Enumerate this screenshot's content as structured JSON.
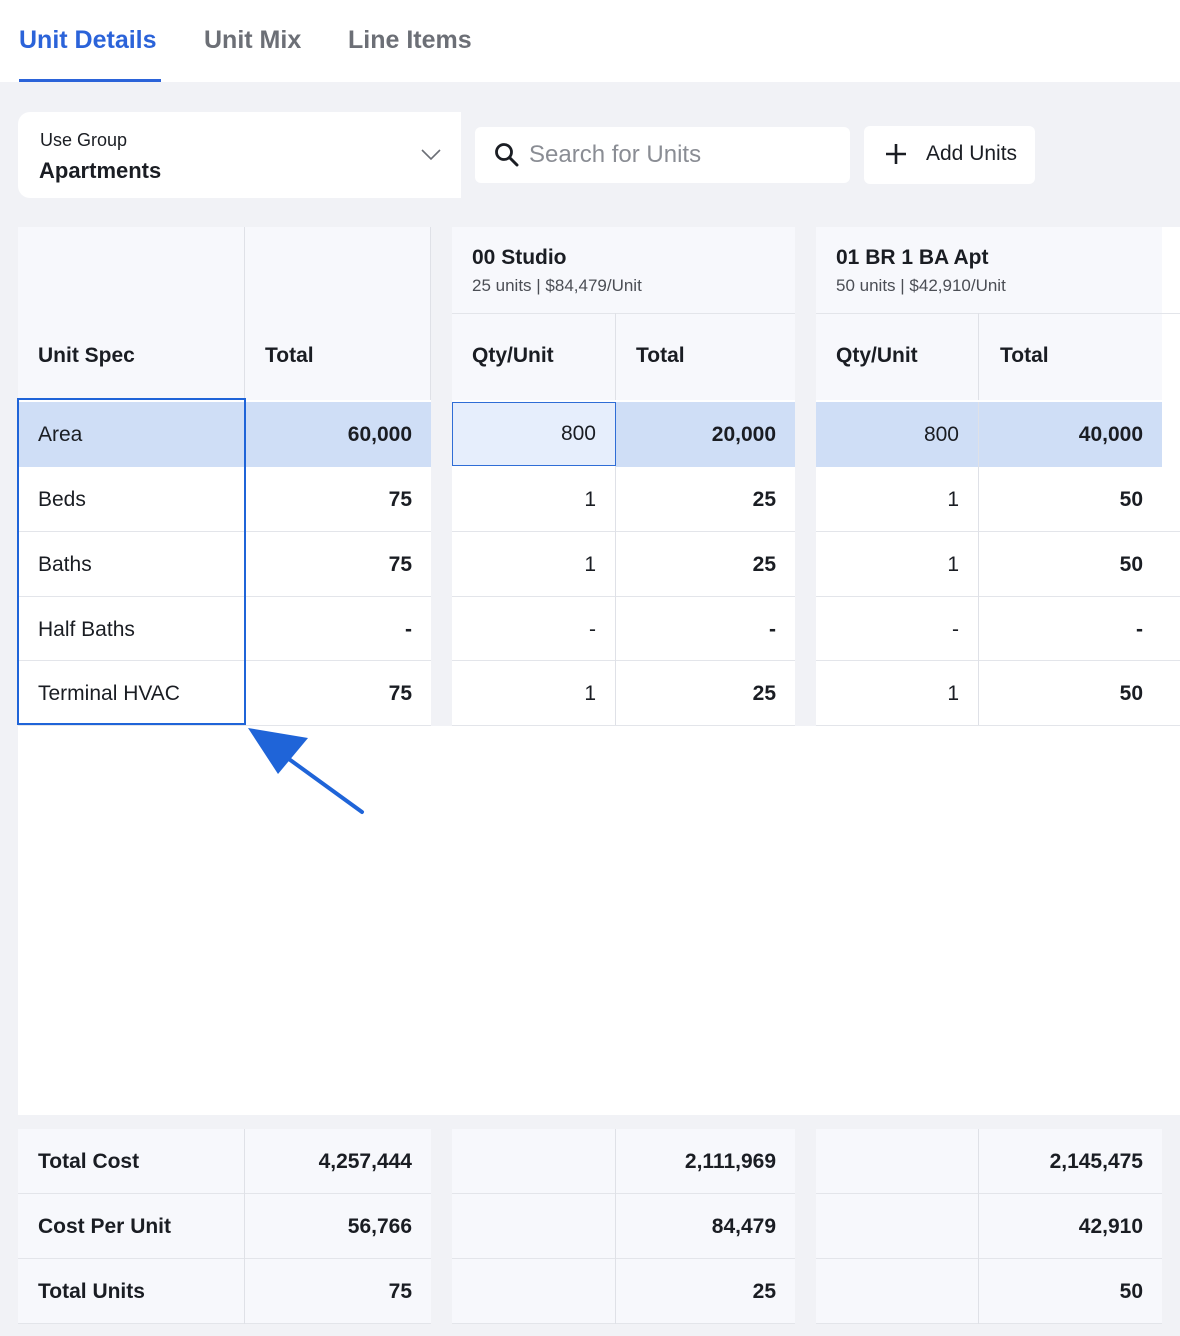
{
  "tabs": [
    {
      "label": "Unit Details",
      "active": true
    },
    {
      "label": "Unit Mix",
      "active": false
    },
    {
      "label": "Line Items",
      "active": false
    }
  ],
  "use_group": {
    "label": "Use Group",
    "value": "Apartments"
  },
  "search": {
    "placeholder": "Search for Units",
    "value": ""
  },
  "add_units": {
    "label": "Add Units"
  },
  "table": {
    "spec_header": "Unit Spec",
    "total_header": "Total",
    "qty_header": "Qty/Unit",
    "units": [
      {
        "name": "00 Studio",
        "summary": "25 units | $84,479/Unit"
      },
      {
        "name": "01 BR 1 BA Apt",
        "summary": "50 units | $42,910/Unit"
      }
    ],
    "rows": [
      {
        "spec": "Area",
        "total": "60,000",
        "u1_qty": "800",
        "u1_total": "20,000",
        "u2_qty": "800",
        "u2_total": "40,000"
      },
      {
        "spec": "Beds",
        "total": "75",
        "u1_qty": "1",
        "u1_total": "25",
        "u2_qty": "1",
        "u2_total": "50"
      },
      {
        "spec": "Baths",
        "total": "75",
        "u1_qty": "1",
        "u1_total": "25",
        "u2_qty": "1",
        "u2_total": "50"
      },
      {
        "spec": "Half Baths",
        "total": "-",
        "u1_qty": "-",
        "u1_total": "-",
        "u2_qty": "-",
        "u2_total": "-"
      },
      {
        "spec": "Terminal HVAC",
        "total": "75",
        "u1_qty": "1",
        "u1_total": "25",
        "u2_qty": "1",
        "u2_total": "50"
      }
    ],
    "footer": [
      {
        "label": "Total Cost",
        "total": "4,257,444",
        "u1_total": "2,111,969",
        "u2_total": "2,145,475"
      },
      {
        "label": "Cost Per Unit",
        "total": "56,766",
        "u1_total": "84,479",
        "u2_total": "42,910"
      },
      {
        "label": "Total Units",
        "total": "75",
        "u1_total": "25",
        "u2_total": "50"
      }
    ]
  },
  "colors": {
    "accent": "#2b63d9",
    "highlight_row": "#cfdef6",
    "selection": "#1f64d8"
  }
}
